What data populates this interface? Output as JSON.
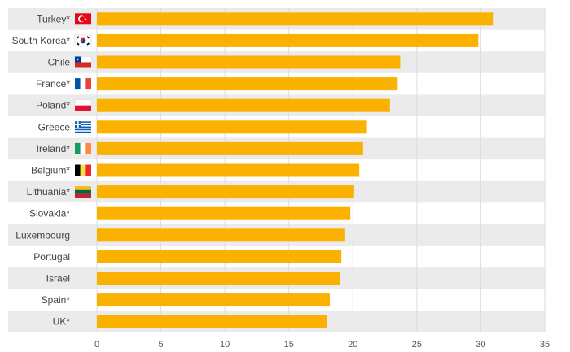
{
  "chart_data": {
    "type": "bar",
    "orientation": "horizontal",
    "title": "",
    "xlabel": "",
    "ylabel": "",
    "xlim": [
      0,
      35
    ],
    "ticks": [
      0,
      5,
      10,
      15,
      20,
      25,
      30,
      35
    ],
    "grid": true,
    "categories": [
      "Turkey*",
      "South Korea*",
      "Chile",
      "France*",
      "Poland*",
      "Greece",
      "Ireland*",
      "Belgium*",
      "Lithuania*",
      "Slovakia*",
      "Luxembourg",
      "Portugal",
      "Israel",
      "Spain*",
      "UK*"
    ],
    "values": [
      31.0,
      29.8,
      23.7,
      23.5,
      22.9,
      21.1,
      20.8,
      20.5,
      20.1,
      19.8,
      19.4,
      19.1,
      19.0,
      18.2,
      18.0
    ],
    "flags": [
      "turkey-flag-icon",
      "south-korea-flag-icon",
      "chile-flag-icon",
      "france-flag-icon",
      "poland-flag-icon",
      "greece-flag-icon",
      "ireland-flag-icon",
      "belgium-flag-icon",
      "lithuania-flag-icon",
      "",
      "",
      "",
      "",
      "",
      ""
    ],
    "bar_color": "#FBB100",
    "band_color": "#EBEBEB",
    "grid_color": "#DDDDDD"
  }
}
